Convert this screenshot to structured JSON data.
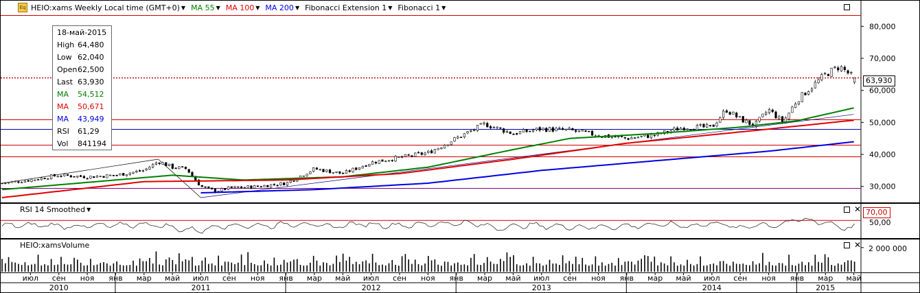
{
  "header": {
    "logo": "Eq",
    "instrument": "HEIO:xams Weekly Local time (GMT+0)",
    "indicators": [
      {
        "label": "MA 55",
        "color": "#008000"
      },
      {
        "label": "MA 100",
        "color": "#e00000"
      },
      {
        "label": "MA 200",
        "color": "#0000e0"
      },
      {
        "label": "Fibonacci Extension 1",
        "color": "#000000"
      },
      {
        "label": "Fibonacci 1",
        "color": "#000000"
      }
    ]
  },
  "infobox": {
    "date": "18-май-2015",
    "rows": [
      {
        "k": "High",
        "v": "64,480",
        "color": "#000000"
      },
      {
        "k": "Low",
        "v": "62,040",
        "color": "#000000"
      },
      {
        "k": "Open",
        "v": "62,500",
        "color": "#000000"
      },
      {
        "k": "Last",
        "v": "63,930",
        "color": "#000000"
      },
      {
        "k": "MA",
        "v": "54,512",
        "color": "#008000"
      },
      {
        "k": "MA",
        "v": "50,671",
        "color": "#e00000"
      },
      {
        "k": "MA",
        "v": "43,949",
        "color": "#0000e0"
      },
      {
        "k": "RSI",
        "v": "61,29",
        "color": "#000000"
      },
      {
        "k": "Vol",
        "v": "841194",
        "color": "#000000"
      }
    ]
  },
  "rsi_pane": {
    "title": "RSI 14 Smoothed",
    "tag": "70,00",
    "tick": "50,00"
  },
  "volume_pane": {
    "title": "HEIO:xamsVolume",
    "tick": "2 000 000"
  },
  "last_price_tag": "63,930",
  "chart_data": {
    "type": "candlestick",
    "title": "HEIO:xams Weekly",
    "ylim": [
      25000,
      88000
    ],
    "yticks": [
      "30,000",
      "40,000",
      "50,000",
      "60,000",
      "70,000",
      "80,000"
    ],
    "ytick_values": [
      30000,
      40000,
      50000,
      60000,
      70000,
      80000
    ],
    "x_start": "2010-05",
    "x_end": "2015-05",
    "months": [
      {
        "label": "июл",
        "date": "2010-07"
      },
      {
        "label": "сен",
        "date": "2010-09"
      },
      {
        "label": "ноя",
        "date": "2010-11"
      },
      {
        "label": "янв",
        "date": "2011-01"
      },
      {
        "label": "мар",
        "date": "2011-03"
      },
      {
        "label": "май",
        "date": "2011-05"
      },
      {
        "label": "июл",
        "date": "2011-07"
      },
      {
        "label": "сен",
        "date": "2011-09"
      },
      {
        "label": "ноя",
        "date": "2011-11"
      },
      {
        "label": "янв",
        "date": "2012-01"
      },
      {
        "label": "мар",
        "date": "2012-03"
      },
      {
        "label": "май",
        "date": "2012-05"
      },
      {
        "label": "июл",
        "date": "2012-07"
      },
      {
        "label": "сен",
        "date": "2012-09"
      },
      {
        "label": "ноя",
        "date": "2012-11"
      },
      {
        "label": "янв",
        "date": "2013-01"
      },
      {
        "label": "мар",
        "date": "2013-03"
      },
      {
        "label": "май",
        "date": "2013-05"
      },
      {
        "label": "июл",
        "date": "2013-07"
      },
      {
        "label": "сен",
        "date": "2013-09"
      },
      {
        "label": "ноя",
        "date": "2013-11"
      },
      {
        "label": "янв",
        "date": "2014-01"
      },
      {
        "label": "мар",
        "date": "2014-03"
      },
      {
        "label": "май",
        "date": "2014-05"
      },
      {
        "label": "июл",
        "date": "2014-07"
      },
      {
        "label": "сен",
        "date": "2014-09"
      },
      {
        "label": "ноя",
        "date": "2014-11"
      },
      {
        "label": "янв",
        "date": "2015-01"
      },
      {
        "label": "мар",
        "date": "2015-03"
      },
      {
        "label": "май",
        "date": "2015-05"
      }
    ],
    "years": [
      {
        "label": "2010",
        "center": "2010-09"
      },
      {
        "label": "2011",
        "center": "2011-07"
      },
      {
        "label": "2012",
        "center": "2012-07"
      },
      {
        "label": "2013",
        "center": "2013-07"
      },
      {
        "label": "2014",
        "center": "2014-07"
      },
      {
        "label": "2015",
        "center": "2015-03"
      }
    ],
    "year_boundaries": [
      "2011-01",
      "2012-01",
      "2013-01",
      "2014-01",
      "2015-01"
    ],
    "close_anchors": [
      {
        "date": "2010-05",
        "v": 31000
      },
      {
        "date": "2010-07",
        "v": 32000
      },
      {
        "date": "2010-09",
        "v": 33500
      },
      {
        "date": "2010-11",
        "v": 33000
      },
      {
        "date": "2011-01",
        "v": 33500
      },
      {
        "date": "2011-03",
        "v": 35000
      },
      {
        "date": "2011-04",
        "v": 37800
      },
      {
        "date": "2011-05",
        "v": 36000
      },
      {
        "date": "2011-06",
        "v": 35500
      },
      {
        "date": "2011-07",
        "v": 30000
      },
      {
        "date": "2011-08",
        "v": 28500
      },
      {
        "date": "2011-09",
        "v": 29500
      },
      {
        "date": "2011-11",
        "v": 30000
      },
      {
        "date": "2012-01",
        "v": 31000
      },
      {
        "date": "2012-03",
        "v": 35500
      },
      {
        "date": "2012-05",
        "v": 34000
      },
      {
        "date": "2012-07",
        "v": 37500
      },
      {
        "date": "2012-09",
        "v": 39000
      },
      {
        "date": "2012-11",
        "v": 40500
      },
      {
        "date": "2013-01",
        "v": 45000
      },
      {
        "date": "2013-03",
        "v": 49500
      },
      {
        "date": "2013-05",
        "v": 46500
      },
      {
        "date": "2013-07",
        "v": 48000
      },
      {
        "date": "2013-09",
        "v": 47500
      },
      {
        "date": "2013-11",
        "v": 46000
      },
      {
        "date": "2014-01",
        "v": 45000
      },
      {
        "date": "2014-03",
        "v": 46000
      },
      {
        "date": "2014-05",
        "v": 48500
      },
      {
        "date": "2014-07",
        "v": 48500
      },
      {
        "date": "2014-08",
        "v": 54000
      },
      {
        "date": "2014-09",
        "v": 51000
      },
      {
        "date": "2014-10",
        "v": 49000
      },
      {
        "date": "2014-11",
        "v": 54000
      },
      {
        "date": "2014-12",
        "v": 50000
      },
      {
        "date": "2015-01",
        "v": 57000
      },
      {
        "date": "2015-03",
        "v": 65000
      },
      {
        "date": "2015-04",
        "v": 67500
      },
      {
        "date": "2015-05",
        "v": 63930
      }
    ],
    "series": [
      {
        "name": "MA 55",
        "color": "#008000",
        "points": [
          {
            "date": "2010-05",
            "v": 29000
          },
          {
            "date": "2011-05",
            "v": 33500
          },
          {
            "date": "2011-10",
            "v": 32000
          },
          {
            "date": "2012-05",
            "v": 33000
          },
          {
            "date": "2012-11",
            "v": 36000
          },
          {
            "date": "2013-05",
            "v": 41500
          },
          {
            "date": "2013-09",
            "v": 45000
          },
          {
            "date": "2014-03",
            "v": 46500
          },
          {
            "date": "2014-09",
            "v": 48500
          },
          {
            "date": "2015-01",
            "v": 50500
          },
          {
            "date": "2015-05",
            "v": 54512
          }
        ]
      },
      {
        "name": "MA 100",
        "color": "#e00000",
        "points": [
          {
            "date": "2010-05",
            "v": 26500
          },
          {
            "date": "2011-03",
            "v": 31500
          },
          {
            "date": "2012-01",
            "v": 32000
          },
          {
            "date": "2012-09",
            "v": 34000
          },
          {
            "date": "2013-05",
            "v": 38500
          },
          {
            "date": "2014-01",
            "v": 43500
          },
          {
            "date": "2014-09",
            "v": 47000
          },
          {
            "date": "2015-05",
            "v": 50671
          }
        ]
      },
      {
        "name": "MA 200",
        "color": "#0000e0",
        "points": [
          {
            "date": "2011-07",
            "v": 28000
          },
          {
            "date": "2012-03",
            "v": 29000
          },
          {
            "date": "2012-11",
            "v": 31000
          },
          {
            "date": "2013-07",
            "v": 35000
          },
          {
            "date": "2014-03",
            "v": 38000
          },
          {
            "date": "2014-11",
            "v": 41000
          },
          {
            "date": "2015-05",
            "v": 43949
          }
        ]
      }
    ],
    "levels": [
      {
        "v": 83500,
        "color": "#cc0000",
        "style": "solid"
      },
      {
        "v": 63930,
        "color": "#cc0000",
        "style": "dotted"
      },
      {
        "v": 51000,
        "color": "#cc0000",
        "style": "solid"
      },
      {
        "v": 48000,
        "color": "#0000aa",
        "style": "solid"
      },
      {
        "v": 43000,
        "color": "#cc0000",
        "style": "solid"
      },
      {
        "v": 39300,
        "color": "#cc0000",
        "style": "solid"
      },
      {
        "v": 29500,
        "color": "#800080",
        "style": "solid"
      }
    ],
    "trendlines": [
      {
        "from": {
          "date": "2010-05",
          "v": 31000
        },
        "to": {
          "date": "2011-04",
          "v": 38500
        },
        "color": "#000000"
      },
      {
        "from": {
          "date": "2011-04",
          "v": 38500
        },
        "to": {
          "date": "2011-07",
          "v": 26500
        },
        "color": "#000000"
      },
      {
        "from": {
          "date": "2011-07",
          "v": 26500
        },
        "to": {
          "date": "2015-05",
          "v": 52500
        },
        "color": "#000080"
      }
    ],
    "rsi": {
      "ylim": [
        0,
        100
      ],
      "level": 70,
      "tick": 50
    },
    "volume": {
      "max": 2500000,
      "tick": 2000000
    }
  }
}
